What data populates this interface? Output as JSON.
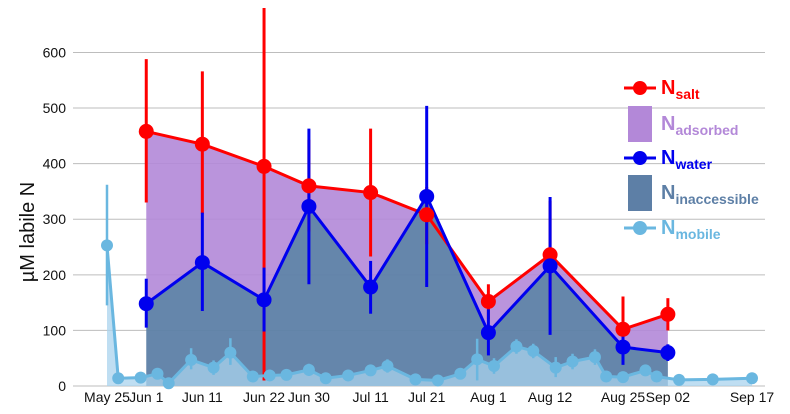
{
  "chart_data": {
    "type": "line",
    "title": "",
    "ylabel": "µM labile N",
    "xlabel": "",
    "ylim": [
      0,
      680
    ],
    "yticks": [
      0,
      100,
      200,
      300,
      400,
      500,
      600
    ],
    "grid": "horizontal",
    "legend_position": "right",
    "x_ticks": [
      {
        "label": "May 25",
        "day": 0
      },
      {
        "label": "Jun 1",
        "day": 7
      },
      {
        "label": "Jun 11",
        "day": 17
      },
      {
        "label": "Jun 22",
        "day": 28
      },
      {
        "label": "Jun 30",
        "day": 36
      },
      {
        "label": "Jul 11",
        "day": 47
      },
      {
        "label": "Jul 21",
        "day": 57
      },
      {
        "label": "Aug 1",
        "day": 68
      },
      {
        "label": "Aug 12",
        "day": 79
      },
      {
        "label": "Aug 25",
        "day": 92
      },
      {
        "label": "Sep 02",
        "day": 100
      },
      {
        "label": "Sep 17",
        "day": 115
      }
    ],
    "series": [
      {
        "key": "salt",
        "legend_main": "N",
        "legend_sub": "salt",
        "color": "#ff0000",
        "points": [
          {
            "day": 7,
            "y": 458,
            "lo": 330,
            "hi": 588
          },
          {
            "day": 17,
            "y": 435,
            "lo": 310,
            "hi": 566
          },
          {
            "day": 28,
            "y": 395,
            "lo": 10,
            "hi": 680
          },
          {
            "day": 36,
            "y": 360,
            "lo": 278,
            "hi": 443
          },
          {
            "day": 47,
            "y": 348,
            "lo": 233,
            "hi": 463
          },
          {
            "day": 57,
            "y": 308,
            "lo": 255,
            "hi": 358
          },
          {
            "day": 68,
            "y": 152,
            "lo": 120,
            "hi": 183
          },
          {
            "day": 79,
            "y": 236,
            "lo": 137,
            "hi": 333
          },
          {
            "day": 92,
            "y": 102,
            "lo": 42,
            "hi": 161
          },
          {
            "day": 100,
            "y": 129,
            "lo": 100,
            "hi": 158
          }
        ]
      },
      {
        "key": "adsorbed",
        "legend_main": "N",
        "legend_sub": "adsorbed",
        "color": "#b388d8"
      },
      {
        "key": "water",
        "legend_main": "N",
        "legend_sub": "water",
        "color": "#0000ee",
        "points": [
          {
            "day": 7,
            "y": 148,
            "lo": 105,
            "hi": 193
          },
          {
            "day": 17,
            "y": 222,
            "lo": 135,
            "hi": 312
          },
          {
            "day": 28,
            "y": 155,
            "lo": 98,
            "hi": 213
          },
          {
            "day": 36,
            "y": 323,
            "lo": 183,
            "hi": 463
          },
          {
            "day": 47,
            "y": 178,
            "lo": 130,
            "hi": 225
          },
          {
            "day": 57,
            "y": 341,
            "lo": 178,
            "hi": 504
          },
          {
            "day": 68,
            "y": 96,
            "lo": 55,
            "hi": 138
          },
          {
            "day": 79,
            "y": 216,
            "lo": 92,
            "hi": 340
          },
          {
            "day": 92,
            "y": 70,
            "lo": 38,
            "hi": 103
          },
          {
            "day": 100,
            "y": 60,
            "lo": 45,
            "hi": 75
          }
        ]
      },
      {
        "key": "inaccessible",
        "legend_main": "N",
        "legend_sub": "inaccessible",
        "color": "#5d7fa6"
      },
      {
        "key": "mobile",
        "legend_main": "N",
        "legend_sub": "mobile",
        "color": "#6ab7e0",
        "points": [
          {
            "day": 0,
            "y": 253,
            "lo": 145,
            "hi": 362
          },
          {
            "day": 2,
            "y": 14,
            "lo": 10,
            "hi": 18
          },
          {
            "day": 6,
            "y": 15,
            "lo": 10,
            "hi": 20
          },
          {
            "day": 9,
            "y": 22,
            "lo": 12,
            "hi": 32
          },
          {
            "day": 11,
            "y": 5,
            "lo": 2,
            "hi": 10
          },
          {
            "day": 15,
            "y": 47,
            "lo": 30,
            "hi": 68
          },
          {
            "day": 19,
            "y": 33,
            "lo": 20,
            "hi": 46
          },
          {
            "day": 22,
            "y": 60,
            "lo": 38,
            "hi": 86
          },
          {
            "day": 26,
            "y": 17,
            "lo": 10,
            "hi": 24
          },
          {
            "day": 29,
            "y": 19,
            "lo": 12,
            "hi": 26
          },
          {
            "day": 32,
            "y": 20,
            "lo": 12,
            "hi": 28
          },
          {
            "day": 36,
            "y": 29,
            "lo": 18,
            "hi": 40
          },
          {
            "day": 39,
            "y": 14,
            "lo": 8,
            "hi": 20
          },
          {
            "day": 43,
            "y": 19,
            "lo": 12,
            "hi": 26
          },
          {
            "day": 47,
            "y": 28,
            "lo": 18,
            "hi": 38
          },
          {
            "day": 50,
            "y": 36,
            "lo": 24,
            "hi": 48
          },
          {
            "day": 55,
            "y": 12,
            "lo": 6,
            "hi": 18
          },
          {
            "day": 59,
            "y": 10,
            "lo": 5,
            "hi": 15
          },
          {
            "day": 63,
            "y": 22,
            "lo": 12,
            "hi": 32
          },
          {
            "day": 66,
            "y": 48,
            "lo": 10,
            "hi": 85
          },
          {
            "day": 69,
            "y": 36,
            "lo": 22,
            "hi": 50
          },
          {
            "day": 73,
            "y": 71,
            "lo": 58,
            "hi": 84
          },
          {
            "day": 76,
            "y": 63,
            "lo": 50,
            "hi": 76
          },
          {
            "day": 80,
            "y": 33,
            "lo": 16,
            "hi": 52
          },
          {
            "day": 83,
            "y": 44,
            "lo": 30,
            "hi": 58
          },
          {
            "day": 87,
            "y": 52,
            "lo": 38,
            "hi": 66
          },
          {
            "day": 89,
            "y": 17,
            "lo": 10,
            "hi": 24
          },
          {
            "day": 92,
            "y": 16,
            "lo": 8,
            "hi": 24
          },
          {
            "day": 96,
            "y": 28,
            "lo": 18,
            "hi": 38
          },
          {
            "day": 98,
            "y": 17,
            "lo": 10,
            "hi": 24
          },
          {
            "day": 102,
            "y": 11,
            "lo": 6,
            "hi": 16
          },
          {
            "day": 108,
            "y": 12,
            "lo": 8,
            "hi": 16
          },
          {
            "day": 115,
            "y": 14,
            "lo": 10,
            "hi": 18
          }
        ]
      }
    ]
  }
}
